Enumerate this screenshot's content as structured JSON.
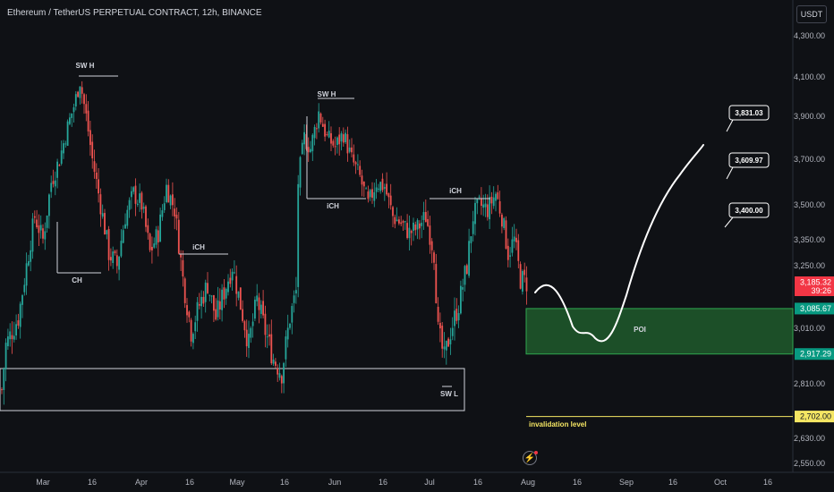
{
  "header": {
    "title": "Ethereum / TetherUS PERPETUAL CONTRACT, 12h, BINANCE"
  },
  "currency_button": "USDT",
  "chart_data": {
    "type": "candlestick",
    "y_axis": {
      "side": "right",
      "ticks": [
        "4,300.00",
        "4,100.00",
        "3,900.00",
        "3,700.00",
        "3,500.00",
        "3,350.00",
        "3,250.00",
        "3,010.00",
        "2,810.00",
        "2,630.00",
        "2,550.00"
      ]
    },
    "x_axis": {
      "ticks": [
        "Mar",
        "16",
        "Apr",
        "16",
        "May",
        "16",
        "Jun",
        "16",
        "Jul",
        "16",
        "Aug",
        "16",
        "Sep",
        "16",
        "Oct",
        "16"
      ]
    },
    "price_tags": [
      {
        "label": "3,185.32",
        "sub": "39:26",
        "color": "#f23645",
        "role": "last-price"
      },
      {
        "label": "3,085.67",
        "color": "#089981",
        "role": "poi-top"
      },
      {
        "label": "2,917.29",
        "color": "#089981",
        "role": "poi-bottom"
      },
      {
        "label": "2,702.00",
        "color": "#f5e663",
        "role": "invalidation"
      }
    ],
    "annotations": [
      "SW H",
      "CH",
      "iCH",
      "SW H",
      "iCH",
      "iCH",
      "SW L",
      "POI",
      "invalidation level"
    ],
    "targets": [
      "3,831.03",
      "3,609.97",
      "3,400.00"
    ],
    "colors": {
      "up": "#26a69a",
      "down": "#ef5350",
      "background": "#0f1115",
      "poi_fill": "#1f5b2c",
      "invalidation": "#f5e663"
    },
    "series_close_path": [
      {
        "t": 0,
        "p": 2790
      },
      {
        "t": 2,
        "p": 2950
      },
      {
        "t": 5,
        "p": 3000
      },
      {
        "t": 8,
        "p": 3050
      },
      {
        "t": 12,
        "p": 3250
      },
      {
        "t": 16,
        "p": 3450
      },
      {
        "t": 20,
        "p": 3350
      },
      {
        "t": 24,
        "p": 3600
      },
      {
        "t": 28,
        "p": 3700
      },
      {
        "t": 32,
        "p": 3850
      },
      {
        "t": 35,
        "p": 3950
      },
      {
        "t": 38,
        "p": 4080
      },
      {
        "t": 41,
        "p": 3900
      },
      {
        "t": 44,
        "p": 3700
      },
      {
        "t": 48,
        "p": 3500
      },
      {
        "t": 52,
        "p": 3300
      },
      {
        "t": 56,
        "p": 3250
      },
      {
        "t": 60,
        "p": 3450
      },
      {
        "t": 64,
        "p": 3550
      },
      {
        "t": 68,
        "p": 3500
      },
      {
        "t": 72,
        "p": 3300
      },
      {
        "t": 76,
        "p": 3380
      },
      {
        "t": 80,
        "p": 3580
      },
      {
        "t": 84,
        "p": 3480
      },
      {
        "t": 88,
        "p": 3200
      },
      {
        "t": 92,
        "p": 3000
      },
      {
        "t": 96,
        "p": 3100
      },
      {
        "t": 100,
        "p": 3180
      },
      {
        "t": 104,
        "p": 3050
      },
      {
        "t": 108,
        "p": 3150
      },
      {
        "t": 112,
        "p": 3250
      },
      {
        "t": 116,
        "p": 3100
      },
      {
        "t": 120,
        "p": 2950
      },
      {
        "t": 124,
        "p": 3120
      },
      {
        "t": 128,
        "p": 3000
      },
      {
        "t": 132,
        "p": 2900
      },
      {
        "t": 136,
        "p": 2850
      },
      {
        "t": 140,
        "p": 3050
      },
      {
        "t": 143,
        "p": 3150
      },
      {
        "t": 144,
        "p": 3600
      },
      {
        "t": 147,
        "p": 3800
      },
      {
        "t": 150,
        "p": 3750
      },
      {
        "t": 154,
        "p": 3920
      },
      {
        "t": 158,
        "p": 3800
      },
      {
        "t": 162,
        "p": 3760
      },
      {
        "t": 166,
        "p": 3820
      },
      {
        "t": 170,
        "p": 3700
      },
      {
        "t": 174,
        "p": 3620
      },
      {
        "t": 178,
        "p": 3500
      },
      {
        "t": 182,
        "p": 3600
      },
      {
        "t": 186,
        "p": 3580
      },
      {
        "t": 190,
        "p": 3450
      },
      {
        "t": 194,
        "p": 3420
      },
      {
        "t": 198,
        "p": 3380
      },
      {
        "t": 202,
        "p": 3400
      },
      {
        "t": 206,
        "p": 3450
      },
      {
        "t": 210,
        "p": 3300
      },
      {
        "t": 212,
        "p": 3000
      },
      {
        "t": 215,
        "p": 2900
      },
      {
        "t": 218,
        "p": 3000
      },
      {
        "t": 222,
        "p": 3100
      },
      {
        "t": 226,
        "p": 3250
      },
      {
        "t": 229,
        "p": 3450
      },
      {
        "t": 232,
        "p": 3500
      },
      {
        "t": 236,
        "p": 3480
      },
      {
        "t": 240,
        "p": 3550
      },
      {
        "t": 243,
        "p": 3450
      },
      {
        "t": 246,
        "p": 3300
      },
      {
        "t": 249,
        "p": 3350
      },
      {
        "t": 252,
        "p": 3200
      },
      {
        "t": 255,
        "p": 3185
      }
    ]
  }
}
